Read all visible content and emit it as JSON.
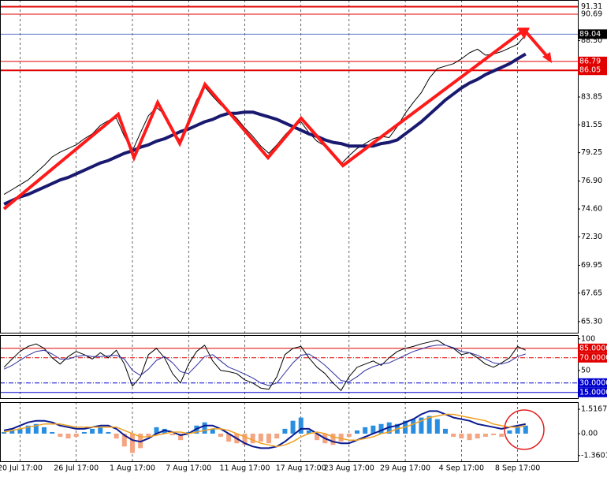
{
  "chart_data": [
    {
      "type": "line",
      "categories": [
        null,
        null,
        "20 Jul 17:00",
        null,
        null,
        null,
        null,
        null,
        null,
        "26 Jul 17:00",
        null,
        null,
        null,
        null,
        null,
        null,
        "1 Aug 17:00",
        null,
        null,
        null,
        null,
        null,
        null,
        "7 Aug 17:00",
        null,
        null,
        null,
        null,
        null,
        null,
        "11 Aug 17:00",
        null,
        null,
        null,
        null,
        null,
        null,
        "17 Aug 17:00",
        null,
        null,
        null,
        null,
        null,
        "23 Aug 17:00",
        null,
        null,
        null,
        null,
        null,
        null,
        "29 Aug 17:00",
        null,
        null,
        null,
        null,
        null,
        null,
        "4 Sep 17:00",
        null,
        null,
        null,
        null,
        null,
        null,
        "8 Sep 17:00",
        null
      ],
      "series": [
        {
          "color": "#000000",
          "width": 1,
          "values": [
            75.8,
            76.2,
            76.6,
            77.0,
            77.6,
            78.2,
            78.9,
            79.3,
            79.6,
            79.9,
            80.4,
            80.8,
            81.5,
            81.9,
            82.1,
            80.6,
            79.4,
            80.9,
            82.3,
            83.0,
            82.4,
            81.1,
            80.2,
            82.0,
            83.6,
            84.7,
            83.9,
            83.2,
            82.7,
            82.1,
            81.3,
            80.6,
            79.8,
            79.2,
            79.9,
            80.7,
            81.4,
            81.8,
            80.9,
            80.2,
            79.8,
            79.1,
            78.3,
            79.0,
            79.6,
            80.0,
            80.4,
            80.6,
            80.5,
            81.4,
            82.5,
            83.4,
            84.2,
            85.4,
            86.2,
            86.4,
            86.6,
            87.0,
            87.5,
            87.8,
            87.3,
            87.4,
            87.6,
            87.9,
            88.2,
            89.0
          ]
        },
        {
          "color": "#191970",
          "width": 4,
          "values": [
            75.0,
            75.3,
            75.6,
            75.8,
            76.1,
            76.4,
            76.7,
            77.0,
            77.2,
            77.5,
            77.8,
            78.1,
            78.4,
            78.6,
            78.9,
            79.2,
            79.4,
            79.7,
            79.9,
            80.2,
            80.4,
            80.7,
            81.0,
            81.2,
            81.5,
            81.8,
            82.0,
            82.3,
            82.5,
            82.5,
            82.6,
            82.6,
            82.4,
            82.2,
            82.0,
            81.7,
            81.4,
            81.1,
            80.8,
            80.6,
            80.3,
            80.1,
            80.0,
            79.8,
            79.8,
            79.8,
            79.8,
            80.0,
            80.1,
            80.3,
            80.8,
            81.3,
            81.8,
            82.4,
            83.0,
            83.6,
            84.1,
            84.6,
            85.0,
            85.3,
            85.7,
            86.0,
            86.3,
            86.6,
            87.0,
            87.4
          ]
        }
      ],
      "ylim": [
        64.38,
        91.86
      ],
      "yticks": [
        {
          "value": 88.5,
          "label": "88.50"
        },
        83.85,
        81.55,
        79.25,
        {
          "value": 76.9,
          "label": "76.90"
        },
        {
          "value": 74.6,
          "label": "74.60"
        },
        {
          "value": 72.3,
          "label": "72.30"
        },
        69.95,
        67.65,
        {
          "value": 65.3,
          "label": "65.30"
        }
      ],
      "hlines": [
        91.31,
        90.69,
        86.79,
        86.05
      ],
      "hline_colors": [
        "#e00000",
        "#e00000",
        "#e00000",
        "#e00000"
      ],
      "last_price": 89.04,
      "last_price_color": "#4060c0"
    },
    {
      "type": "line",
      "series": [
        {
          "color": "#000000",
          "width": 1,
          "values": [
            55,
            68,
            80,
            88,
            92,
            85,
            70,
            60,
            72,
            80,
            75,
            68,
            78,
            70,
            82,
            60,
            25,
            40,
            75,
            85,
            70,
            45,
            30,
            60,
            80,
            90,
            65,
            50,
            48,
            45,
            35,
            30,
            22,
            20,
            40,
            75,
            85,
            88,
            70,
            55,
            45,
            30,
            18,
            40,
            55,
            60,
            65,
            58,
            70,
            80,
            85,
            88,
            92,
            95,
            98,
            90,
            85,
            75,
            78,
            70,
            60,
            55,
            62,
            70,
            88,
            82
          ]
        },
        {
          "color": "#3030a0",
          "width": 1,
          "values": [
            52,
            58,
            66,
            74,
            80,
            82,
            76,
            68,
            68,
            72,
            74,
            72,
            72,
            73,
            74,
            68,
            50,
            42,
            52,
            66,
            72,
            62,
            48,
            45,
            58,
            72,
            75,
            65,
            55,
            50,
            44,
            38,
            30,
            26,
            30,
            46,
            62,
            74,
            76,
            68,
            58,
            46,
            34,
            32,
            40,
            50,
            56,
            60,
            62,
            68,
            74,
            80,
            84,
            88,
            90,
            90,
            86,
            80,
            78,
            74,
            68,
            62,
            60,
            64,
            72,
            76
          ]
        }
      ],
      "ylim": [
        6,
        106
      ],
      "yticks": [
        100,
        50
      ],
      "hlines": [
        {
          "value": 85,
          "label": "85.0000"
        },
        {
          "value": 70,
          "label": "70.0000"
        },
        {
          "value": 30,
          "label": "30.0000"
        },
        {
          "value": 15,
          "label": "15.0000"
        }
      ],
      "hline_colors": [
        "#e00000",
        "#e00000",
        "#0000cd",
        "#0000cd"
      ]
    },
    {
      "type": "bar",
      "values": [
        0.1,
        0.2,
        0.3,
        0.5,
        0.6,
        0.4,
        0.1,
        -0.2,
        -0.3,
        -0.2,
        0.1,
        0.3,
        0.4,
        0.1,
        -0.3,
        -0.8,
        -1.2,
        -0.9,
        -0.2,
        0.4,
        0.3,
        -0.1,
        -0.4,
        0.1,
        0.5,
        0.7,
        0.3,
        -0.2,
        -0.5,
        -0.6,
        -0.7,
        -0.6,
        -0.5,
        -0.6,
        -0.3,
        0.3,
        0.8,
        1.0,
        0.2,
        -0.4,
        -0.6,
        -0.7,
        -0.5,
        -0.2,
        0.2,
        0.4,
        0.5,
        0.6,
        0.7,
        0.6,
        0.8,
        0.9,
        1.0,
        1.1,
        0.9,
        0.3,
        -0.2,
        -0.3,
        -0.4,
        -0.3,
        -0.2,
        -0.1,
        -0.2,
        0.2,
        0.4,
        0.5
      ],
      "positive_color": "#2a8ee0",
      "negative_color": "#f4a582",
      "series": [
        {
          "color": "#0a1a90",
          "width": 2,
          "values": [
            0.2,
            0.3,
            0.5,
            0.7,
            0.8,
            0.8,
            0.7,
            0.5,
            0.4,
            0.3,
            0.3,
            0.4,
            0.5,
            0.5,
            0.3,
            -0.1,
            -0.4,
            -0.5,
            -0.3,
            0.0,
            0.2,
            0.1,
            -0.1,
            0.0,
            0.3,
            0.5,
            0.5,
            0.3,
            0.0,
            -0.3,
            -0.6,
            -0.8,
            -0.9,
            -0.9,
            -0.8,
            -0.5,
            -0.1,
            0.3,
            0.3,
            0.0,
            -0.3,
            -0.5,
            -0.6,
            -0.6,
            -0.4,
            -0.2,
            0.0,
            0.2,
            0.4,
            0.5,
            0.7,
            0.9,
            1.2,
            1.4,
            1.4,
            1.2,
            1.0,
            0.9,
            0.8,
            0.6,
            0.5,
            0.4,
            0.3,
            0.4,
            0.5,
            0.6
          ]
        },
        {
          "color": "#f0a020",
          "width": 1.5,
          "values": [
            0.1,
            0.2,
            0.3,
            0.4,
            0.5,
            0.6,
            0.6,
            0.6,
            0.5,
            0.4,
            0.4,
            0.4,
            0.4,
            0.4,
            0.4,
            0.2,
            0.0,
            -0.2,
            -0.2,
            -0.1,
            0.0,
            0.1,
            0.1,
            0.0,
            0.1,
            0.2,
            0.3,
            0.3,
            0.2,
            0.0,
            -0.2,
            -0.4,
            -0.6,
            -0.7,
            -0.8,
            -0.7,
            -0.5,
            -0.2,
            0.0,
            0.1,
            0.0,
            -0.2,
            -0.3,
            -0.4,
            -0.4,
            -0.3,
            -0.2,
            0.0,
            0.1,
            0.3,
            0.4,
            0.6,
            0.8,
            1.0,
            1.1,
            1.2,
            1.2,
            1.1,
            1.0,
            0.9,
            0.8,
            0.6,
            0.5,
            0.4,
            0.4,
            0.5
          ]
        }
      ],
      "ylim": [
        -1.715,
        1.96
      ],
      "yticks": [
        1.5167,
        {
          "value": 0,
          "label": "0.00"
        },
        -1.3601
      ]
    }
  ]
}
